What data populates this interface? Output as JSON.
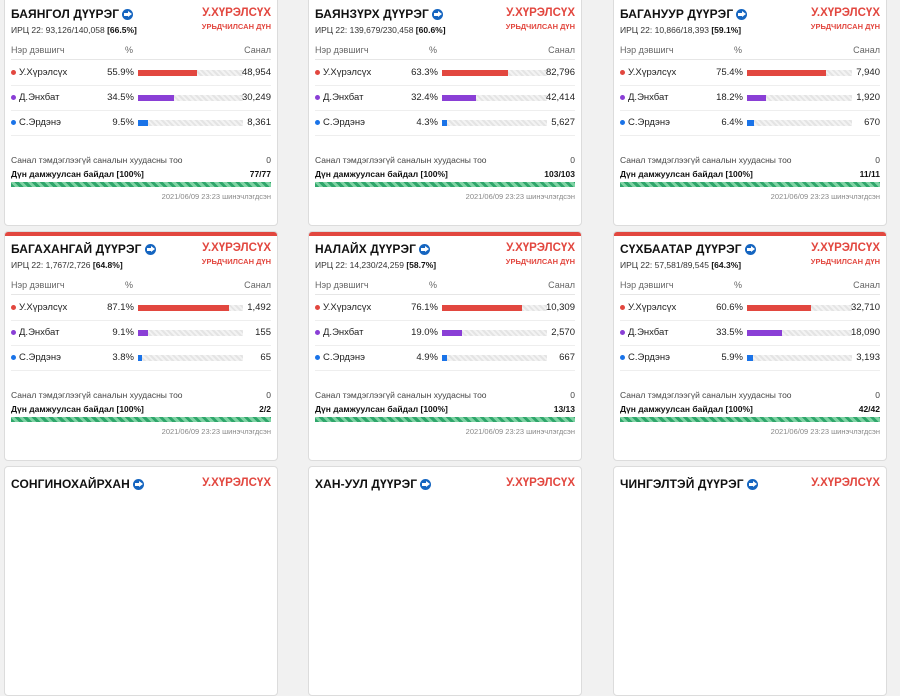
{
  "colors": {
    "red": "#e2473f",
    "purple": "#8a3fd6",
    "blue": "#1a73e8"
  },
  "cards": [
    {
      "name": "БАЯНГОЛ ДҮҮРЭГ",
      "turnout_prefix": "ИРЦ 22: 93,126/140,058",
      "turnout_pct": "[66.5%]",
      "winner": "У.ХҮРЭЛСҮХ",
      "winner_sub": "УРЬДЧИЛСАН ДҮН",
      "col_candidate": "Нэр дэвшигч",
      "col_pct": "%",
      "col_votes": "Санал",
      "candidates": [
        {
          "name": "У.Хүрэлсүх",
          "pct": "55.9%",
          "pct_value": 55.9,
          "votes": "48,954",
          "color": "#e2473f"
        },
        {
          "name": "Д.Энхбат",
          "pct": "34.5%",
          "pct_value": 34.5,
          "votes": "30,249",
          "color": "#8a3fd6"
        },
        {
          "name": "С.Эрдэнэ",
          "pct": "9.5%",
          "pct_value": 9.5,
          "votes": "8,361",
          "color": "#1a73e8"
        }
      ],
      "invalid_label": "Санал тэмдэглээгүй саналын хуудасны тоо",
      "invalid_value": "0",
      "reported_label": "Дүн дамжуулсан байдал [100%]",
      "reported_value": "77/77",
      "timestamp": "2021/06/09 23:23 шинэчлэгдсэн"
    },
    {
      "name": "БАЯНЗҮРХ ДҮҮРЭГ",
      "turnout_prefix": "ИРЦ 22: 139,679/230,458",
      "turnout_pct": "[60.6%]",
      "winner": "У.ХҮРЭЛСҮХ",
      "winner_sub": "УРЬДЧИЛСАН ДҮН",
      "col_candidate": "Нэр дэвшигч",
      "col_pct": "%",
      "col_votes": "Санал",
      "candidates": [
        {
          "name": "У.Хүрэлсүх",
          "pct": "63.3%",
          "pct_value": 63.3,
          "votes": "82,796",
          "color": "#e2473f"
        },
        {
          "name": "Д.Энхбат",
          "pct": "32.4%",
          "pct_value": 32.4,
          "votes": "42,414",
          "color": "#8a3fd6"
        },
        {
          "name": "С.Эрдэнэ",
          "pct": "4.3%",
          "pct_value": 4.3,
          "votes": "5,627",
          "color": "#1a73e8"
        }
      ],
      "invalid_label": "Санал тэмдэглээгүй саналын хуудасны тоо",
      "invalid_value": "0",
      "reported_label": "Дүн дамжуулсан байдал [100%]",
      "reported_value": "103/103",
      "timestamp": "2021/06/09 23:23 шинэчлэгдсэн"
    },
    {
      "name": "БАГАНУУР ДҮҮРЭГ",
      "turnout_prefix": "ИРЦ 22: 10,866/18,393",
      "turnout_pct": "[59.1%]",
      "winner": "У.ХҮРЭЛСҮХ",
      "winner_sub": "УРЬДЧИЛСАН ДҮН",
      "col_candidate": "Нэр дэвшигч",
      "col_pct": "%",
      "col_votes": "Санал",
      "candidates": [
        {
          "name": "У.Хүрэлсүх",
          "pct": "75.4%",
          "pct_value": 75.4,
          "votes": "7,940",
          "color": "#e2473f"
        },
        {
          "name": "Д.Энхбат",
          "pct": "18.2%",
          "pct_value": 18.2,
          "votes": "1,920",
          "color": "#8a3fd6"
        },
        {
          "name": "С.Эрдэнэ",
          "pct": "6.4%",
          "pct_value": 6.4,
          "votes": "670",
          "color": "#1a73e8"
        }
      ],
      "invalid_label": "Санал тэмдэглээгүй саналын хуудасны тоо",
      "invalid_value": "0",
      "reported_label": "Дүн дамжуулсан байдал [100%]",
      "reported_value": "11/11",
      "timestamp": "2021/06/09 23:23 шинэчлэгдсэн"
    },
    {
      "name": "БАГАХАНГАЙ ДҮҮРЭГ",
      "turnout_prefix": "ИРЦ 22: 1,767/2,726",
      "turnout_pct": "[64.8%]",
      "winner": "У.ХҮРЭЛСҮХ",
      "winner_sub": "УРЬДЧИЛСАН ДҮН",
      "col_candidate": "Нэр дэвшигч",
      "col_pct": "%",
      "col_votes": "Санал",
      "candidates": [
        {
          "name": "У.Хүрэлсүх",
          "pct": "87.1%",
          "pct_value": 87.1,
          "votes": "1,492",
          "color": "#e2473f"
        },
        {
          "name": "Д.Энхбат",
          "pct": "9.1%",
          "pct_value": 9.1,
          "votes": "155",
          "color": "#8a3fd6"
        },
        {
          "name": "С.Эрдэнэ",
          "pct": "3.8%",
          "pct_value": 3.8,
          "votes": "65",
          "color": "#1a73e8"
        }
      ],
      "invalid_label": "Санал тэмдэглээгүй саналын хуудасны тоо",
      "invalid_value": "0",
      "reported_label": "Дүн дамжуулсан байдал [100%]",
      "reported_value": "2/2",
      "timestamp": "2021/06/09 23:23 шинэчлэгдсэн"
    },
    {
      "name": "НАЛАЙХ ДҮҮРЭГ",
      "turnout_prefix": "ИРЦ 22: 14,230/24,259",
      "turnout_pct": "[58.7%]",
      "winner": "У.ХҮРЭЛСҮХ",
      "winner_sub": "УРЬДЧИЛСАН ДҮН",
      "col_candidate": "Нэр дэвшигч",
      "col_pct": "%",
      "col_votes": "Санал",
      "candidates": [
        {
          "name": "У.Хүрэлсүх",
          "pct": "76.1%",
          "pct_value": 76.1,
          "votes": "10,309",
          "color": "#e2473f"
        },
        {
          "name": "Д.Энхбат",
          "pct": "19.0%",
          "pct_value": 19.0,
          "votes": "2,570",
          "color": "#8a3fd6"
        },
        {
          "name": "С.Эрдэнэ",
          "pct": "4.9%",
          "pct_value": 4.9,
          "votes": "667",
          "color": "#1a73e8"
        }
      ],
      "invalid_label": "Санал тэмдэглээгүй саналын хуудасны тоо",
      "invalid_value": "0",
      "reported_label": "Дүн дамжуулсан байдал [100%]",
      "reported_value": "13/13",
      "timestamp": "2021/06/09 23:23 шинэчлэгдсэн"
    },
    {
      "name": "СҮХБААТАР ДҮҮРЭГ",
      "turnout_prefix": "ИРЦ 22: 57,581/89,545",
      "turnout_pct": "[64.3%]",
      "winner": "У.ХҮРЭЛСҮХ",
      "winner_sub": "УРЬДЧИЛСАН ДҮН",
      "col_candidate": "Нэр дэвшигч",
      "col_pct": "%",
      "col_votes": "Санал",
      "candidates": [
        {
          "name": "У.Хүрэлсүх",
          "pct": "60.6%",
          "pct_value": 60.6,
          "votes": "32,710",
          "color": "#e2473f"
        },
        {
          "name": "Д.Энхбат",
          "pct": "33.5%",
          "pct_value": 33.5,
          "votes": "18,090",
          "color": "#8a3fd6"
        },
        {
          "name": "С.Эрдэнэ",
          "pct": "5.9%",
          "pct_value": 5.9,
          "votes": "3,193",
          "color": "#1a73e8"
        }
      ],
      "invalid_label": "Санал тэмдэглээгүй саналын хуудасны тоо",
      "invalid_value": "0",
      "reported_label": "Дүн дамжуулсан байдал [100%]",
      "reported_value": "42/42",
      "timestamp": "2021/06/09 23:23 шинэчлэгдсэн"
    },
    {
      "name": "СОНГИНОХАЙРХАН",
      "turnout_prefix": "",
      "turnout_pct": "",
      "winner": "У.ХҮРЭЛСҮХ",
      "winner_sub": "",
      "partial": true
    },
    {
      "name": "ХАН-УУЛ ДҮҮРЭГ",
      "turnout_prefix": "",
      "turnout_pct": "",
      "winner": "У.ХҮРЭЛСҮХ",
      "winner_sub": "",
      "partial": true
    },
    {
      "name": "ЧИНГЭЛТЭЙ ДҮҮРЭГ",
      "turnout_prefix": "",
      "turnout_pct": "",
      "winner": "У.ХҮРЭЛСҮХ",
      "winner_sub": "",
      "partial": true
    }
  ]
}
